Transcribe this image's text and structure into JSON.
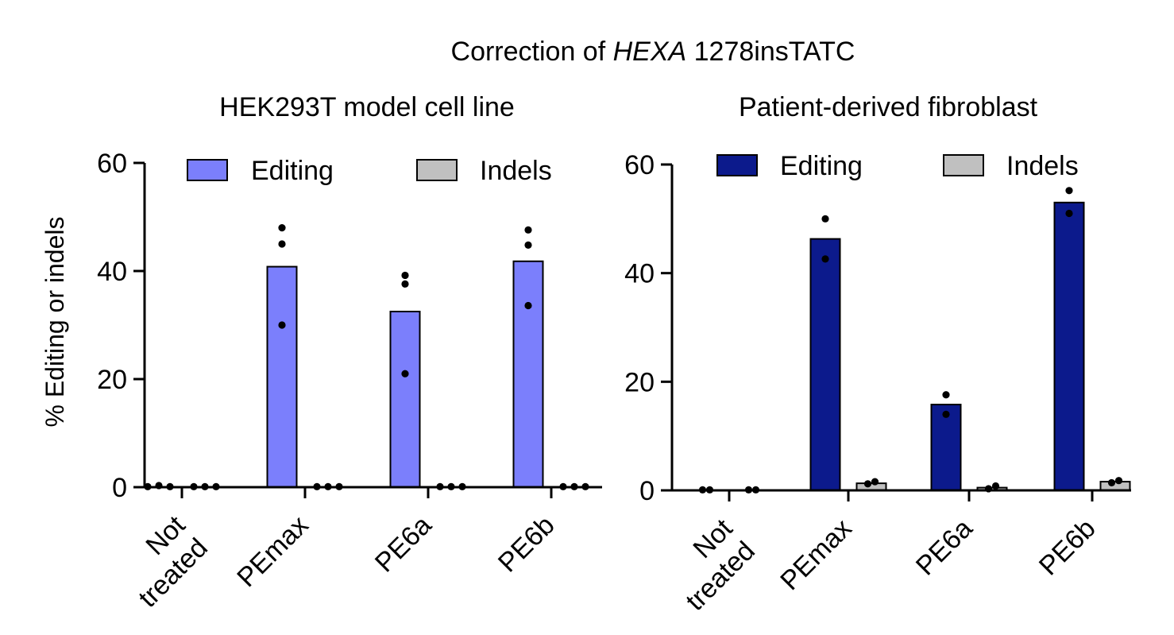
{
  "figure": {
    "title_prefix": "Correction of ",
    "title_gene": "HEXA",
    "title_suffix": " 1278insTATC",
    "ylabel": "% Editing or indels"
  },
  "chart_data": [
    {
      "type": "bar",
      "title": "HEK293T model cell line",
      "ylabel": "% Editing or indels",
      "ylim": [
        0,
        60
      ],
      "yticks": [
        0,
        20,
        40,
        60
      ],
      "categories": [
        "Not treated",
        "PEmax",
        "PE6a",
        "PE6b"
      ],
      "legend": "top",
      "series": [
        {
          "name": "Editing",
          "color": "#7b7ffc",
          "values": [
            0,
            40.8,
            32.5,
            41.8
          ],
          "points": [
            [
              0.1,
              0.3,
              0.1
            ],
            [
              48,
              45,
              30
            ],
            [
              39.2,
              37.6,
              21
            ],
            [
              47.6,
              44.8,
              33.6
            ]
          ]
        },
        {
          "name": "Indels",
          "color": "#c0c0c0",
          "values": [
            0,
            0,
            0,
            0
          ],
          "points": [
            [
              0.1,
              0.1,
              0.1
            ],
            [
              0.1,
              0.1,
              0.1
            ],
            [
              0.1,
              0.1,
              0.1
            ],
            [
              0.1,
              0.1,
              0.1
            ]
          ]
        }
      ]
    },
    {
      "type": "bar",
      "title": "Patient-derived fibroblast",
      "ylabel": "",
      "ylim": [
        0,
        60
      ],
      "yticks": [
        0,
        20,
        40,
        60
      ],
      "categories": [
        "Not treated",
        "PEmax",
        "PE6a",
        "PE6b"
      ],
      "legend": "top",
      "series": [
        {
          "name": "Editing",
          "color": "#0c1a8c",
          "values": [
            0,
            46.3,
            15.8,
            53
          ],
          "points": [
            [
              0.1,
              0.1
            ],
            [
              50,
              42.6
            ],
            [
              17.6,
              14
            ],
            [
              55.2,
              51
            ]
          ]
        },
        {
          "name": "Indels",
          "color": "#c0c0c0",
          "values": [
            0,
            1.3,
            0.5,
            1.6
          ],
          "points": [
            [
              0.1,
              0.1
            ],
            [
              1.2,
              1.6
            ],
            [
              0.3,
              0.8
            ],
            [
              1.4,
              1.8
            ]
          ]
        }
      ]
    }
  ]
}
